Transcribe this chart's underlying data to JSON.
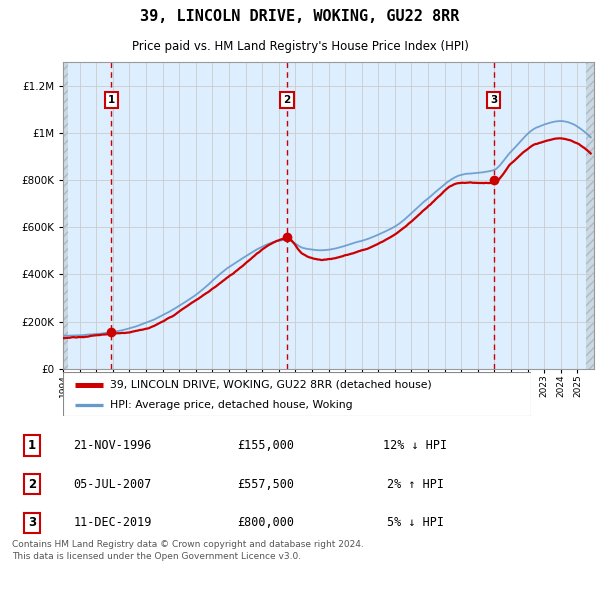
{
  "title": "39, LINCOLN DRIVE, WOKING, GU22 8RR",
  "subtitle": "Price paid vs. HM Land Registry's House Price Index (HPI)",
  "sales": [
    {
      "date_num": 1996.9,
      "price": 155000,
      "label": "1"
    },
    {
      "date_num": 2007.5,
      "price": 557500,
      "label": "2"
    },
    {
      "date_num": 2019.95,
      "price": 800000,
      "label": "3"
    }
  ],
  "sale_annotations": [
    {
      "label": "1",
      "date": "21-NOV-1996",
      "price": "£155,000",
      "pct": "12%",
      "dir": "↓",
      "vs": "HPI"
    },
    {
      "label": "2",
      "date": "05-JUL-2007",
      "price": "£557,500",
      "pct": "2%",
      "dir": "↑",
      "vs": "HPI"
    },
    {
      "label": "3",
      "date": "11-DEC-2019",
      "price": "£800,000",
      "pct": "5%",
      "dir": "↓",
      "vs": "HPI"
    }
  ],
  "legend_entries": [
    {
      "label": "39, LINCOLN DRIVE, WOKING, GU22 8RR (detached house)",
      "color": "#cc0000",
      "lw": 2
    },
    {
      "label": "HPI: Average price, detached house, Woking",
      "color": "#6699cc",
      "lw": 1.5
    }
  ],
  "footer": "Contains HM Land Registry data © Crown copyright and database right 2024.\nThis data is licensed under the Open Government Licence v3.0.",
  "xmin": 1994,
  "xmax": 2026,
  "ymin": 0,
  "ymax": 1300000,
  "yticks": [
    0,
    200000,
    400000,
    600000,
    800000,
    1000000,
    1200000
  ],
  "ytick_labels": [
    "£0",
    "£200K",
    "£400K",
    "£600K",
    "£800K",
    "£1M",
    "£1.2M"
  ],
  "hatch_color": "#ccdde8",
  "grid_color": "#cccccc",
  "vline_color": "#cc0000",
  "dot_color": "#cc0000",
  "plot_bg": "#ddeeff",
  "hpi_anchor": [
    [
      1994.0,
      140000
    ],
    [
      1996.9,
      155000
    ],
    [
      1999,
      195000
    ],
    [
      2002,
      310000
    ],
    [
      2004,
      430000
    ],
    [
      2007.5,
      545000
    ],
    [
      2008.5,
      510000
    ],
    [
      2009.5,
      500000
    ],
    [
      2012,
      540000
    ],
    [
      2014,
      600000
    ],
    [
      2016,
      720000
    ],
    [
      2018,
      820000
    ],
    [
      2019.95,
      840000
    ],
    [
      2021,
      920000
    ],
    [
      2022.5,
      1020000
    ],
    [
      2024,
      1050000
    ],
    [
      2025.5,
      1000000
    ]
  ],
  "prop_anchor": [
    [
      1994.0,
      130000
    ],
    [
      1996.9,
      155000
    ],
    [
      1999,
      175000
    ],
    [
      2002,
      290000
    ],
    [
      2004,
      390000
    ],
    [
      2007.5,
      557500
    ],
    [
      2008.5,
      490000
    ],
    [
      2009.5,
      470000
    ],
    [
      2012,
      510000
    ],
    [
      2014,
      580000
    ],
    [
      2016,
      700000
    ],
    [
      2018,
      800000
    ],
    [
      2019.95,
      800000
    ],
    [
      2021,
      880000
    ],
    [
      2022.5,
      960000
    ],
    [
      2024,
      980000
    ],
    [
      2025.5,
      930000
    ]
  ],
  "hatch_start": 1994.3,
  "hatch_end": 2025.5
}
